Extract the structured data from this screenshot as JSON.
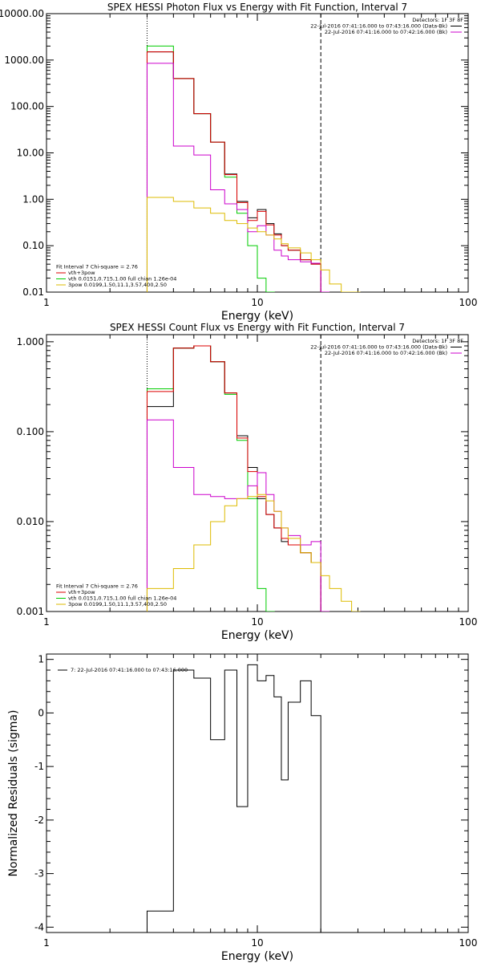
{
  "chart_data": [
    {
      "type": "line",
      "title": "SPEX HESSI Photon Flux vs Energy with Fit Function, Interval 7",
      "xlabel": "Energy (keV)",
      "ylabel": "",
      "xscale": "log",
      "yscale": "log",
      "xlim": [
        1,
        100
      ],
      "ylim": [
        0.01,
        10000
      ],
      "xtick_labels": [
        "1",
        "10",
        "100"
      ],
      "ytick_labels": [
        "0.01",
        "0.10",
        "1.00",
        "10.00",
        "100.00",
        "1000.00",
        "10000.00"
      ],
      "ytick_values": [
        0.01,
        0.1,
        1,
        10,
        100,
        1000,
        10000
      ],
      "vlines": [
        {
          "x": 3,
          "style": "dotted"
        },
        {
          "x": 20,
          "style": "dashed"
        }
      ],
      "legend_topright": [
        {
          "text": "Detectors: 1F 3F 8F",
          "color": "#000000",
          "marker": false
        },
        {
          "text": "22-Jul-2016 07:41:16.000 to 07:43:16.000 (Data-Bk)",
          "color": "#000000",
          "marker": true
        },
        {
          "text": "22-Jul-2016 07:41:16.000 to 07:42:16.000 (Bk)",
          "color": "#cc00cc",
          "marker": true
        }
      ],
      "legend_bottomleft": [
        {
          "text": "Fit Interval  7   Chi-square = 2.76",
          "color": "#000000",
          "marker": false
        },
        {
          "text": "vth+3pow",
          "color": "#dd0000",
          "marker": true
        },
        {
          "text": "vth 0.0151,0.715,1.00  full chian 1.26e-04",
          "color": "#00cc00",
          "marker": true
        },
        {
          "text": "3pow 0.0199,1.50,11.1,3.57,400,2.50",
          "color": "#ddbb00",
          "marker": true
        }
      ],
      "series": [
        {
          "color": "#00cc00",
          "x": [
            3,
            4,
            5,
            6,
            7,
            8,
            9,
            10,
            11
          ],
          "values": [
            2000,
            400,
            70,
            17,
            3,
            0.5,
            0.1,
            0.02,
            0.004
          ]
        },
        {
          "color": "#000000",
          "x": [
            3,
            4,
            5,
            6,
            7,
            8,
            9,
            10,
            11,
            12,
            13,
            14,
            16,
            18,
            20
          ],
          "values": [
            1500,
            400,
            70,
            17,
            3.5,
            0.9,
            0.4,
            0.6,
            0.3,
            0.18,
            0.1,
            0.08,
            0.05,
            0.04,
            0.01
          ]
        },
        {
          "color": "#dd0000",
          "x": [
            3,
            4,
            5,
            6,
            7,
            8,
            9,
            10,
            11,
            12,
            13,
            14,
            16,
            18,
            20
          ],
          "values": [
            1500,
            400,
            70,
            17,
            3.4,
            0.85,
            0.35,
            0.55,
            0.28,
            0.17,
            0.1,
            0.08,
            0.05,
            0.04,
            0.01
          ]
        },
        {
          "color": "#cc00cc",
          "x": [
            3,
            4,
            5,
            6,
            7,
            8,
            9,
            10,
            11,
            12,
            13,
            14,
            16,
            18,
            20
          ],
          "values": [
            850,
            14,
            9,
            1.6,
            0.8,
            0.6,
            0.2,
            0.27,
            0.17,
            0.08,
            0.06,
            0.05,
            0.045,
            0.042,
            0.0001
          ]
        },
        {
          "color": "#ddbb00",
          "x": [
            3,
            4,
            5,
            6,
            7,
            8,
            9,
            10,
            11,
            12,
            13,
            14,
            16,
            18,
            20,
            22,
            25,
            28
          ],
          "values": [
            1.1,
            0.9,
            0.65,
            0.5,
            0.35,
            0.3,
            0.24,
            0.2,
            0.17,
            0.14,
            0.11,
            0.09,
            0.07,
            0.05,
            0.03,
            0.015,
            0.008,
            0.008
          ]
        }
      ]
    },
    {
      "type": "line",
      "title": "SPEX HESSI Count Flux vs Energy with Fit Function, Interval 7",
      "xlabel": "Energy (keV)",
      "ylabel": "",
      "xscale": "log",
      "yscale": "log",
      "xlim": [
        1,
        100
      ],
      "ylim": [
        0.001,
        1.2
      ],
      "xtick_labels": [
        "1",
        "10",
        "100"
      ],
      "ytick_labels": [
        "0.001",
        "0.010",
        "0.100",
        "1.000"
      ],
      "ytick_values": [
        0.001,
        0.01,
        0.1,
        1
      ],
      "vlines": [
        {
          "x": 3,
          "style": "dotted"
        },
        {
          "x": 20,
          "style": "dashed"
        }
      ],
      "legend_topright": [
        {
          "text": "Detectors: 1F 3F 8F",
          "color": "#000000",
          "marker": false
        },
        {
          "text": "22-Jul-2016 07:41:16.000 to 07:43:16.000 (Data-Bk)",
          "color": "#000000",
          "marker": true
        },
        {
          "text": "22-Jul-2016 07:41:16.000 to 07:42:16.000 (Bk)",
          "color": "#cc00cc",
          "marker": true
        }
      ],
      "legend_bottomleft": [
        {
          "text": "Fit Interval  7   Chi-square = 2.76",
          "color": "#000000",
          "marker": false
        },
        {
          "text": "vth+3pow",
          "color": "#dd0000",
          "marker": true
        },
        {
          "text": "vth 0.0151,0.715,1.00  full chian 1.26e-04",
          "color": "#00cc00",
          "marker": true
        },
        {
          "text": "3pow 0.0199,1.50,11.1,3.57,400,2.50",
          "color": "#ddbb00",
          "marker": true
        }
      ],
      "series": [
        {
          "color": "#00cc00",
          "x": [
            3,
            4,
            5,
            6,
            7,
            8,
            9,
            10,
            11
          ],
          "values": [
            0.3,
            0.85,
            0.9,
            0.6,
            0.26,
            0.08,
            0.018,
            0.0018,
            0.0002
          ]
        },
        {
          "color": "#000000",
          "x": [
            3,
            4,
            5,
            6,
            7,
            8,
            9,
            10,
            11,
            12,
            13,
            14,
            16,
            18,
            20
          ],
          "values": [
            0.19,
            0.85,
            0.9,
            0.6,
            0.27,
            0.09,
            0.04,
            0.018,
            0.012,
            0.0085,
            0.006,
            0.0055,
            0.0045,
            0.0035,
            0.0002
          ]
        },
        {
          "color": "#dd0000",
          "x": [
            3,
            4,
            5,
            6,
            7,
            8,
            9,
            10,
            11,
            12,
            13,
            14,
            16,
            18,
            20
          ],
          "values": [
            0.28,
            0.85,
            0.9,
            0.6,
            0.27,
            0.085,
            0.036,
            0.019,
            0.012,
            0.0085,
            0.0065,
            0.0055,
            0.0045,
            0.0035,
            0.0002
          ]
        },
        {
          "color": "#cc00cc",
          "x": [
            3,
            4,
            5,
            6,
            7,
            8,
            9,
            10,
            11,
            12,
            13,
            14,
            16,
            18,
            20
          ],
          "values": [
            0.135,
            0.04,
            0.02,
            0.019,
            0.018,
            0.018,
            0.025,
            0.035,
            0.02,
            0.013,
            0.0085,
            0.007,
            0.0055,
            0.006,
            0.0002
          ]
        },
        {
          "color": "#ddbb00",
          "x": [
            3,
            4,
            5,
            6,
            7,
            8,
            9,
            10,
            11,
            12,
            13,
            14,
            16,
            18,
            20,
            22,
            25,
            28
          ],
          "values": [
            0.0018,
            0.003,
            0.0055,
            0.01,
            0.015,
            0.018,
            0.019,
            0.02,
            0.017,
            0.013,
            0.0085,
            0.0065,
            0.0045,
            0.0035,
            0.0025,
            0.0018,
            0.0013,
            0.0005
          ]
        }
      ]
    },
    {
      "type": "line",
      "title": "",
      "xlabel": "Energy (keV)",
      "ylabel": "Normalized Residuals (sigma)",
      "xscale": "log",
      "yscale": "linear",
      "xlim": [
        1,
        100
      ],
      "ylim": [
        -4.1,
        1.1
      ],
      "xtick_labels": [
        "1",
        "10",
        "100"
      ],
      "ytick_labels": [
        "-4",
        "-3",
        "-2",
        "-1",
        "0",
        "1"
      ],
      "ytick_values": [
        -4,
        -3,
        -2,
        -1,
        0,
        1
      ],
      "legend_topleft": [
        {
          "text": "7: 22-Jul-2016 07:41:16.000 to 07:43:16.000",
          "color": "#000000",
          "marker": true
        }
      ],
      "series": [
        {
          "color": "#000000",
          "x": [
            3,
            4,
            5,
            6,
            7,
            8,
            9,
            10,
            11,
            12,
            13,
            14,
            16,
            18,
            20
          ],
          "values": [
            -3.7,
            0.8,
            0.65,
            -0.5,
            0.8,
            -1.75,
            0.9,
            0.6,
            0.7,
            0.3,
            -1.25,
            0.2,
            0.6,
            -0.05,
            -4.1
          ]
        }
      ]
    }
  ]
}
